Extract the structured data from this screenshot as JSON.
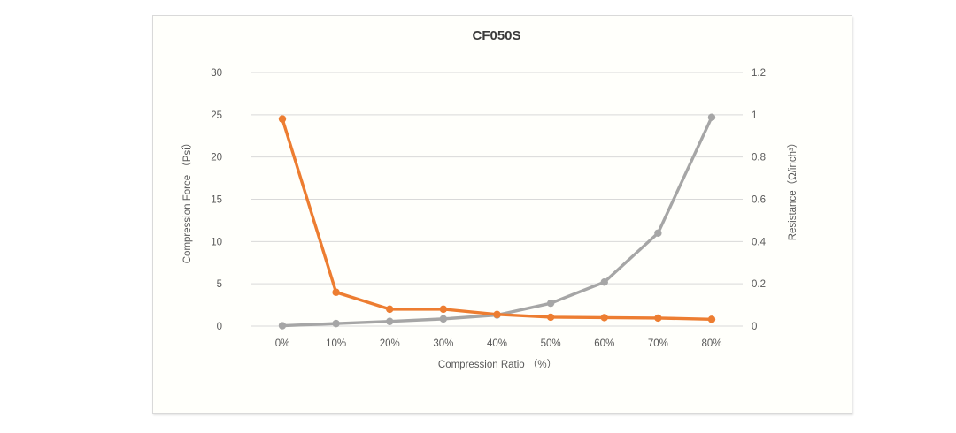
{
  "window": {
    "background": "#ffffff"
  },
  "chart_data": {
    "type": "line",
    "title": "CF050S",
    "categories": [
      "0%",
      "10%",
      "20%",
      "30%",
      "40%",
      "50%",
      "60%",
      "70%",
      "80%"
    ],
    "series": [
      {
        "name": "Compression Force",
        "axis": "left",
        "color": "#A6A6A6",
        "values": [
          0.05,
          0.3,
          0.55,
          0.85,
          1.3,
          2.7,
          5.2,
          11.0,
          24.7
        ]
      },
      {
        "name": "Resistance",
        "axis": "right",
        "color": "#ED7D31",
        "values": [
          0.98,
          0.16,
          0.08,
          0.08,
          0.055,
          0.042,
          0.04,
          0.038,
          0.032
        ]
      }
    ],
    "xlabel": "Compression Ratio （%）",
    "ylabel_left": "Compression Force （Psi）",
    "ylabel_right": "Resistance（Ω/inch³）",
    "y_left": {
      "min": 0,
      "max": 30,
      "tick_labels": [
        "0",
        "5",
        "10",
        "15",
        "20",
        "25",
        "30"
      ]
    },
    "y_right": {
      "min": 0,
      "max": 1.2,
      "tick_labels": [
        "0",
        "0.2",
        "0.4",
        "0.6",
        "0.8",
        "1",
        "1.2"
      ]
    },
    "grid": "horizontal",
    "legend": "none",
    "colors": {
      "gridline": "#d9d9d9",
      "tick_text": "#595959",
      "title_text": "#3b3b3b"
    }
  }
}
